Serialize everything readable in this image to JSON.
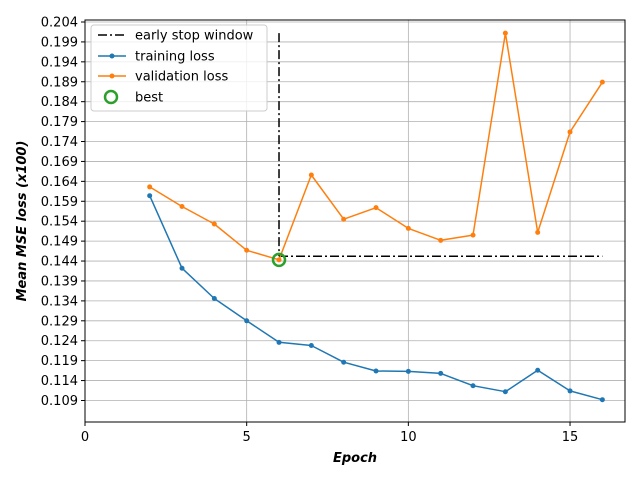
{
  "chart_data": {
    "type": "line",
    "xlabel": "Epoch",
    "ylabel": "Mean MSE loss (x100)",
    "xlim": [
      0,
      16.7
    ],
    "ylim": [
      0.1036,
      0.2045
    ],
    "xticks": [
      0,
      5,
      10,
      15
    ],
    "yticks": [
      0.109,
      0.114,
      0.119,
      0.124,
      0.129,
      0.134,
      0.139,
      0.144,
      0.149,
      0.154,
      0.159,
      0.164,
      0.169,
      0.174,
      0.179,
      0.184,
      0.189,
      0.194,
      0.199,
      0.204
    ],
    "grid": true,
    "legend_position": "top-left",
    "series": [
      {
        "name": "training loss",
        "color": "#1f77b4",
        "marker": "dot",
        "x": [
          2,
          3,
          4,
          5,
          6,
          7,
          8,
          9,
          10,
          11,
          12,
          13,
          14,
          15,
          16
        ],
        "y": [
          0.1604,
          0.1422,
          0.1346,
          0.129,
          0.1236,
          0.1228,
          0.1186,
          0.1164,
          0.1163,
          0.1158,
          0.1127,
          0.1112,
          0.1166,
          0.1114,
          0.1092
        ]
      },
      {
        "name": "validation loss",
        "color": "#ff7f0e",
        "marker": "dot",
        "x": [
          2,
          3,
          4,
          5,
          6,
          7,
          8,
          9,
          10,
          11,
          12,
          13,
          14,
          15,
          16
        ],
        "y": [
          0.1626,
          0.1577,
          0.1533,
          0.1467,
          0.1443,
          0.1656,
          0.1545,
          0.1574,
          0.1522,
          0.1492,
          0.1505,
          0.2012,
          0.1512,
          0.1764,
          0.1889
        ]
      }
    ],
    "early_stop_window": {
      "name": "early stop window",
      "color": "#000000",
      "style": "dash-dot",
      "vertical_x": 6,
      "vertical_y_top": 0.2012,
      "horizontal_y": 0.1452,
      "horizontal_x_end": 16
    },
    "best": {
      "name": "best",
      "color": "#2ca02c",
      "x": 6,
      "y": 0.1443
    }
  }
}
